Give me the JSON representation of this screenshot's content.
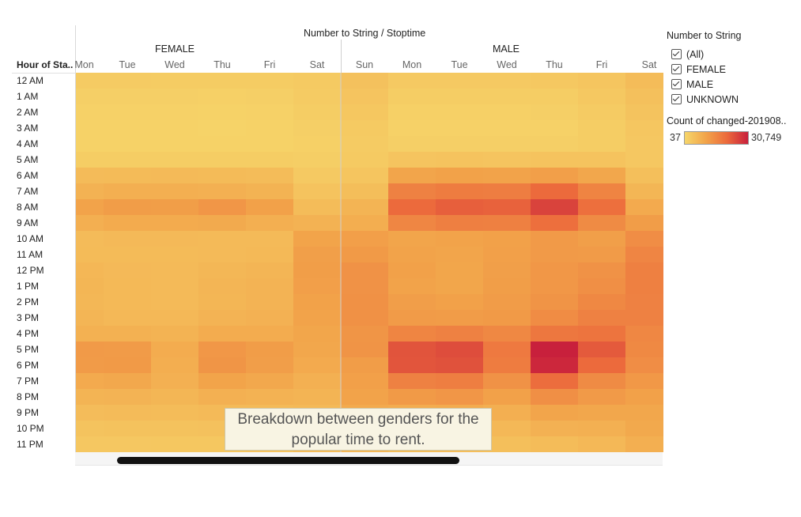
{
  "header": {
    "title": "Number to String / Stoptime",
    "row_header": "Hour of Sta..",
    "groups": [
      "FEMALE",
      "MALE"
    ]
  },
  "legend": {
    "filter_title": "Number to String",
    "filter_items": [
      "(All)",
      "FEMALE",
      "MALE",
      "UNKNOWN"
    ],
    "color_title": "Count of changed-201908..",
    "min_label": "37",
    "max_label": "30,749",
    "colors": [
      "#f6d66a",
      "#f2a44a",
      "#ec6a3c",
      "#c8203c"
    ]
  },
  "tooltip": {
    "text": "Breakdown between genders for the popular time to rent."
  },
  "chart_data": {
    "type": "heatmap",
    "title": "Number to String / Stoptime",
    "row_label": "Hour of Sta..",
    "rows": [
      "12 AM",
      "1 AM",
      "2 AM",
      "3 AM",
      "4 AM",
      "5 AM",
      "6 AM",
      "7 AM",
      "8 AM",
      "9 AM",
      "10 AM",
      "11 AM",
      "12 PM",
      "1 PM",
      "2 PM",
      "3 PM",
      "4 PM",
      "5 PM",
      "6 PM",
      "7 PM",
      "8 PM",
      "9 PM",
      "10 PM",
      "11 PM"
    ],
    "column_groups": [
      {
        "name": "FEMALE",
        "columns": [
          "Mon",
          "Tue",
          "Wed",
          "Thu",
          "Fri",
          "Sat"
        ]
      },
      {
        "name": "MALE",
        "columns": [
          "Sun",
          "Mon",
          "Tue",
          "Wed",
          "Thu",
          "Fri",
          "Sat"
        ]
      }
    ],
    "color_range": [
      37,
      30749
    ],
    "values": [
      [
        1200,
        1200,
        1100,
        1100,
        1100,
        1400,
        2600,
        1500,
        1500,
        1500,
        1600,
        2100,
        3500
      ],
      [
        700,
        700,
        700,
        600,
        700,
        1200,
        2200,
        900,
        900,
        900,
        1000,
        1600,
        2900
      ],
      [
        500,
        500,
        500,
        400,
        500,
        900,
        1800,
        600,
        600,
        600,
        700,
        1200,
        2400
      ],
      [
        400,
        400,
        400,
        300,
        400,
        700,
        1400,
        500,
        500,
        500,
        500,
        900,
        1900
      ],
      [
        400,
        400,
        400,
        400,
        400,
        600,
        1200,
        700,
        700,
        700,
        700,
        900,
        1700
      ],
      [
        900,
        900,
        900,
        900,
        900,
        800,
        1400,
        2200,
        2300,
        2200,
        2300,
        2300,
        1700
      ],
      [
        3600,
        3700,
        3800,
        3700,
        3500,
        1500,
        2000,
        7600,
        8200,
        8000,
        8600,
        7300,
        3000
      ],
      [
        5200,
        5800,
        5700,
        5500,
        5100,
        2300,
        3200,
        14000,
        15000,
        14800,
        18500,
        13600,
        4500
      ],
      [
        8000,
        9000,
        8900,
        10200,
        8300,
        3500,
        4800,
        18600,
        20300,
        19800,
        24800,
        17500,
        6600
      ],
      [
        5800,
        6500,
        6500,
        6700,
        5800,
        5200,
        6000,
        13200,
        14500,
        14200,
        17500,
        12300,
        9000
      ],
      [
        3600,
        3900,
        3900,
        3800,
        3800,
        7800,
        8600,
        7600,
        8000,
        8400,
        9500,
        8700,
        11800
      ],
      [
        3700,
        3700,
        3700,
        3800,
        4000,
        8700,
        9600,
        7900,
        7600,
        8500,
        9500,
        9300,
        13300
      ],
      [
        4300,
        3900,
        3800,
        4400,
        4700,
        8900,
        11000,
        8300,
        7400,
        8700,
        10000,
        11000,
        14300
      ],
      [
        4500,
        4000,
        3800,
        4600,
        5000,
        8600,
        11000,
        8000,
        7400,
        8900,
        10100,
        11500,
        14300
      ],
      [
        4400,
        4000,
        3800,
        4500,
        5000,
        8200,
        11200,
        8800,
        8400,
        9100,
        10600,
        12700,
        14000
      ],
      [
        4600,
        4200,
        4100,
        5000,
        5300,
        8000,
        11200,
        9400,
        9200,
        9600,
        12000,
        14000,
        14000
      ],
      [
        5400,
        5400,
        5100,
        6300,
        6300,
        7400,
        10400,
        13400,
        14000,
        12800,
        16000,
        16500,
        13000
      ],
      [
        9500,
        9400,
        6200,
        10000,
        9000,
        7300,
        10600,
        22000,
        23200,
        15600,
        30749,
        21000,
        12600
      ],
      [
        9300,
        9600,
        6000,
        10400,
        8800,
        6600,
        9000,
        21800,
        22400,
        15000,
        29500,
        18500,
        11800
      ],
      [
        6600,
        7000,
        5500,
        7800,
        7000,
        5500,
        8500,
        14000,
        14600,
        11000,
        18000,
        12200,
        9900
      ],
      [
        4800,
        5000,
        4500,
        5600,
        5200,
        4800,
        8000,
        9600,
        10200,
        8300,
        11500,
        9500,
        8400
      ],
      [
        3400,
        3600,
        3500,
        3800,
        3800,
        4000,
        6600,
        6300,
        6500,
        5800,
        7600,
        7200,
        7200
      ],
      [
        2400,
        2500,
        2500,
        2600,
        2800,
        3500,
        5200,
        4300,
        4400,
        4100,
        5300,
        5600,
        6800
      ],
      [
        1700,
        1700,
        1800,
        1800,
        2200,
        3300,
        4100,
        3000,
        3100,
        3000,
        3500,
        4200,
        5800
      ]
    ]
  }
}
